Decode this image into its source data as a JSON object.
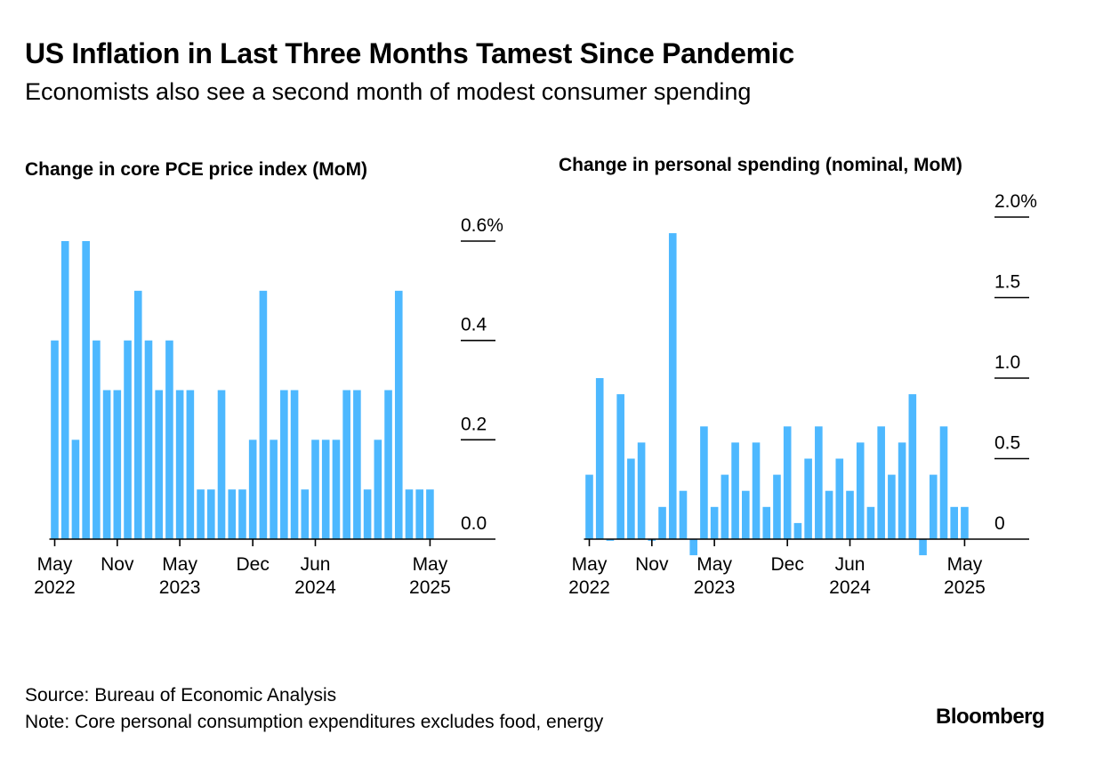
{
  "title": "US Inflation in Last Three Months Tamest Since Pandemic",
  "subtitle": "Economists also see a second month of modest consumer spending",
  "footer": {
    "source": "Source: Bureau of Economic Analysis",
    "note": "Note: Core personal consumption expenditures excludes food, energy"
  },
  "logo": "Bloomberg",
  "colors": {
    "bar": "#4db8ff",
    "axis": "#000000"
  },
  "chart_data": [
    {
      "type": "bar",
      "title": "Change in core PCE price index (MoM)",
      "x_axis_labels": [
        {
          "month": "May",
          "year": "2022",
          "index": 0
        },
        {
          "month": "Nov",
          "year": "",
          "index": 6
        },
        {
          "month": "May",
          "year": "2023",
          "index": 12
        },
        {
          "month": "Dec",
          "year": "",
          "index": 19
        },
        {
          "month": "Jun",
          "year": "2024",
          "index": 25
        },
        {
          "month": "May",
          "year": "2025",
          "index": 36
        }
      ],
      "y_ticks": [
        {
          "value": 0.6,
          "label": "0.6%"
        },
        {
          "value": 0.4,
          "label": "0.4"
        },
        {
          "value": 0.2,
          "label": "0.2"
        },
        {
          "value": 0.0,
          "label": "0.0"
        }
      ],
      "ylim": [
        0,
        0.6
      ],
      "grid": false,
      "values": [
        0.4,
        0.6,
        0.2,
        0.6,
        0.4,
        0.3,
        0.3,
        0.4,
        0.5,
        0.4,
        0.3,
        0.4,
        0.3,
        0.3,
        0.1,
        0.1,
        0.3,
        0.1,
        0.1,
        0.2,
        0.5,
        0.2,
        0.3,
        0.3,
        0.1,
        0.2,
        0.2,
        0.2,
        0.3,
        0.3,
        0.1,
        0.2,
        0.3,
        0.5,
        0.1,
        0.1,
        0.1
      ]
    },
    {
      "type": "bar",
      "title": "Change in personal spending (nominal, MoM)",
      "x_axis_labels": [
        {
          "month": "May",
          "year": "2022",
          "index": 0
        },
        {
          "month": "Nov",
          "year": "",
          "index": 6
        },
        {
          "month": "May",
          "year": "2023",
          "index": 12
        },
        {
          "month": "Dec",
          "year": "",
          "index": 19
        },
        {
          "month": "Jun",
          "year": "2024",
          "index": 25
        },
        {
          "month": "May",
          "year": "2025",
          "index": 36
        }
      ],
      "y_ticks": [
        {
          "value": 2.0,
          "label": "2.0%"
        },
        {
          "value": 1.5,
          "label": "1.5"
        },
        {
          "value": 1.0,
          "label": "1.0"
        },
        {
          "value": 0.5,
          "label": "0.5"
        },
        {
          "value": 0.0,
          "label": "0"
        }
      ],
      "ylim": [
        -0.1,
        2.0
      ],
      "grid": false,
      "values": [
        0.4,
        1.0,
        -0.01,
        0.9,
        0.5,
        0.6,
        -0.01,
        0.2,
        1.9,
        0.3,
        -0.1,
        0.7,
        0.2,
        0.4,
        0.6,
        0.3,
        0.6,
        0.2,
        0.4,
        0.7,
        0.1,
        0.5,
        0.7,
        0.3,
        0.5,
        0.3,
        0.6,
        0.2,
        0.7,
        0.4,
        0.6,
        0.9,
        -0.1,
        0.4,
        0.7,
        0.2,
        0.2
      ]
    }
  ]
}
